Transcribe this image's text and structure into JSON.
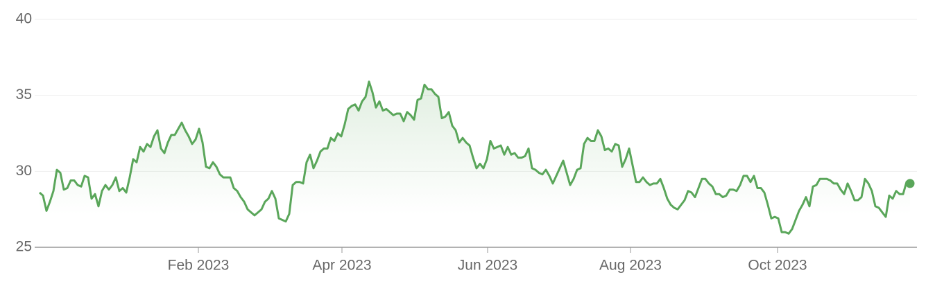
{
  "chart_data": {
    "type": "line",
    "series": [
      {
        "color": "#5aa65a",
        "values": [
          28.6,
          28.4,
          27.4,
          28.0,
          28.7,
          30.1,
          29.9,
          28.8,
          28.9,
          29.4,
          29.4,
          29.1,
          29.0,
          29.7,
          29.6,
          28.2,
          28.5,
          27.7,
          28.7,
          29.1,
          28.8,
          29.1,
          29.6,
          28.7,
          28.9,
          28.6,
          29.6,
          30.8,
          30.6,
          31.6,
          31.3,
          31.8,
          31.6,
          32.3,
          32.7,
          31.5,
          31.2,
          31.9,
          32.4,
          32.4,
          32.8,
          33.2,
          32.7,
          32.3,
          31.8,
          32.1,
          32.8,
          31.9,
          30.3,
          30.2,
          30.6,
          30.3,
          29.8,
          29.6,
          29.6,
          29.6,
          28.9,
          28.7,
          28.3,
          28.0,
          27.5,
          27.3,
          27.1,
          27.3,
          27.5,
          28.0,
          28.2,
          28.7,
          28.2,
          26.9,
          26.8,
          26.7,
          27.2,
          29.1,
          29.3,
          29.3,
          29.2,
          30.6,
          31.1,
          30.2,
          30.7,
          31.3,
          31.5,
          31.5,
          32.2,
          32.0,
          32.5,
          32.3,
          33.1,
          34.1,
          34.3,
          34.4,
          34.0,
          34.6,
          34.9,
          35.9,
          35.2,
          34.2,
          34.6,
          34.0,
          34.1,
          33.9,
          33.7,
          33.8,
          33.8,
          33.3,
          33.9,
          33.7,
          33.4,
          34.7,
          34.8,
          35.7,
          35.4,
          35.4,
          35.1,
          34.9,
          33.5,
          33.6,
          33.9,
          33.0,
          32.7,
          31.9,
          32.2,
          31.9,
          31.7,
          30.9,
          30.2,
          30.5,
          30.2,
          30.8,
          32.0,
          31.5,
          31.6,
          31.7,
          31.1,
          31.6,
          31.1,
          31.2,
          30.9,
          30.9,
          31.0,
          31.5,
          30.2,
          30.1,
          29.9,
          29.8,
          30.1,
          29.7,
          29.2,
          29.7,
          30.2,
          30.7,
          29.9,
          29.1,
          29.5,
          30.1,
          30.2,
          31.8,
          32.2,
          32.0,
          32.0,
          32.7,
          32.3,
          31.4,
          31.5,
          31.3,
          31.8,
          31.7,
          30.3,
          30.8,
          31.5,
          30.4,
          29.3,
          29.3,
          29.6,
          29.3,
          29.1,
          29.2,
          29.2,
          29.5,
          28.9,
          28.2,
          27.8,
          27.6,
          27.5,
          27.8,
          28.1,
          28.7,
          28.6,
          28.3,
          28.9,
          29.5,
          29.5,
          29.2,
          29.0,
          28.5,
          28.5,
          28.3,
          28.4,
          28.8,
          28.8,
          28.7,
          29.1,
          29.7,
          29.7,
          29.3,
          29.7,
          28.9,
          28.9,
          28.6,
          27.8,
          26.9,
          27.0,
          26.9,
          26.0,
          26.0,
          25.9,
          26.2,
          26.8,
          27.4,
          27.8,
          28.3,
          27.7,
          29.0,
          29.1,
          29.5,
          29.5,
          29.5,
          29.4,
          29.2,
          29.2,
          28.8,
          28.5,
          29.2,
          28.7,
          28.1,
          28.1,
          28.3,
          29.5,
          29.2,
          28.7,
          27.7,
          27.6,
          27.3,
          27.0,
          28.4,
          28.2,
          28.7,
          28.5,
          28.5,
          29.3,
          29.2
        ]
      }
    ],
    "xlim": [
      -1.4,
      253
    ],
    "xticks": [
      {
        "value": 45.8,
        "label": "Feb 2023"
      },
      {
        "value": 87.2,
        "label": "Apr 2023"
      },
      {
        "value": 129.2,
        "label": "Jun 2023"
      },
      {
        "value": 170.4,
        "label": "Aug 2023"
      },
      {
        "value": 212.8,
        "label": "Oct 2023"
      }
    ],
    "ylim": [
      25,
      40
    ],
    "yticks": [
      25,
      30,
      35,
      40
    ],
    "grid": true
  }
}
